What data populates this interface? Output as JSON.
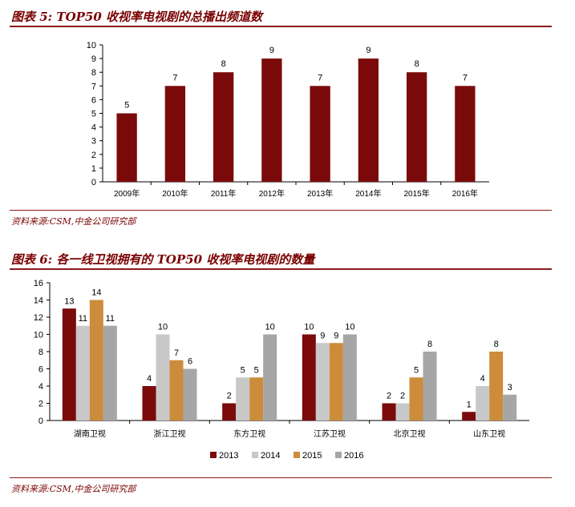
{
  "figure5": {
    "title": "图表 5: TOP50 收视率电视剧的总播出频道数",
    "source": "资料来源:CSM,中金公司研究部"
  },
  "figure6": {
    "title": "图表 6: 各一线卫视拥有的 TOP50 收视率电视剧的数量",
    "source": "资料来源:CSM,中金公司研究部"
  },
  "colors": {
    "accent": "#8b1a1a",
    "s2013": "#7b0a0a",
    "s2014": "#c8c8c8",
    "s2015": "#cc8c3c",
    "s2016": "#a6a6a6"
  },
  "chart_data": [
    {
      "type": "bar",
      "categories": [
        "2009年",
        "2010年",
        "2011年",
        "2012年",
        "2013年",
        "2014年",
        "2015年",
        "2016年"
      ],
      "values": [
        5,
        7,
        8,
        9,
        7,
        9,
        8,
        7
      ],
      "ylim": [
        0,
        10
      ],
      "yticks": [
        0,
        1,
        2,
        3,
        4,
        5,
        6,
        7,
        8,
        9,
        10
      ],
      "grid": false,
      "legend": "none"
    },
    {
      "type": "bar",
      "categories": [
        "湖南卫视",
        "浙江卫视",
        "东方卫视",
        "江苏卫视",
        "北京卫视",
        "山东卫视"
      ],
      "series": [
        {
          "name": "2013",
          "values": [
            13,
            4,
            2,
            10,
            2,
            1
          ]
        },
        {
          "name": "2014",
          "values": [
            11,
            10,
            5,
            9,
            2,
            4
          ]
        },
        {
          "name": "2015",
          "values": [
            14,
            7,
            5,
            9,
            5,
            8
          ]
        },
        {
          "name": "2016",
          "values": [
            11,
            6,
            10,
            10,
            8,
            3
          ]
        }
      ],
      "ylim": [
        0,
        16
      ],
      "yticks": [
        0,
        2,
        4,
        6,
        8,
        10,
        12,
        14,
        16
      ],
      "grid": false,
      "legend": "bottom"
    }
  ]
}
